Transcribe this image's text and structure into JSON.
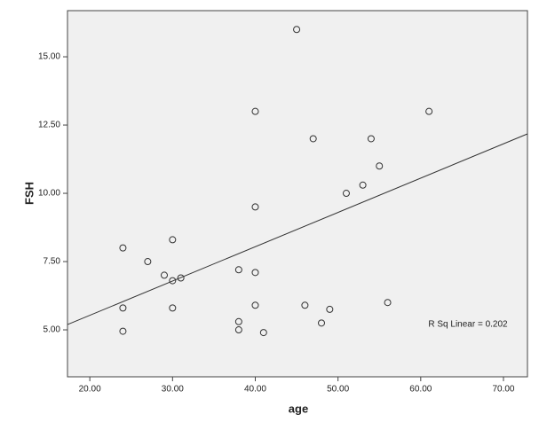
{
  "chart_data": {
    "type": "scatter",
    "x_label": "age",
    "y_label": "FSH",
    "annotation": "R Sq Linear = 0.202",
    "x": [
      24,
      24,
      24,
      27,
      29,
      30,
      30,
      31,
      30,
      38,
      38,
      38,
      40,
      40,
      41,
      40,
      40,
      45,
      47,
      46,
      49,
      48,
      51,
      53,
      54,
      55,
      56,
      61
    ],
    "values": [
      8.0,
      5.8,
      4.95,
      7.5,
      7.0,
      8.3,
      6.8,
      6.9,
      5.8,
      7.2,
      5.3,
      5.0,
      7.1,
      5.9,
      4.9,
      13.0,
      9.5,
      16.0,
      12.0,
      5.9,
      5.75,
      5.25,
      10.0,
      10.3,
      12.0,
      11.0,
      6.0,
      13.0
    ],
    "fit_line": {
      "intercept": 3.02,
      "slope": 0.1256
    },
    "marker_color": "#333333",
    "line_color": "#333333",
    "background": "#f0f0f0",
    "xlim": [
      17.3,
      72.9
    ],
    "ylim": [
      3.28,
      16.69
    ],
    "xticks": [
      {
        "value": 20,
        "label": "20.00"
      },
      {
        "value": 30,
        "label": "30.00"
      },
      {
        "value": 40,
        "label": "40.00"
      },
      {
        "value": 50,
        "label": "50.00"
      },
      {
        "value": 60,
        "label": "60.00"
      },
      {
        "value": 70,
        "label": "70.00"
      }
    ],
    "yticks": [
      {
        "value": 5,
        "label": "5.00"
      },
      {
        "value": 7.5,
        "label": "7.50"
      },
      {
        "value": 10,
        "label": "10.00"
      },
      {
        "value": 12.5,
        "label": "12.50"
      },
      {
        "value": 15,
        "label": "15.00"
      }
    ]
  }
}
